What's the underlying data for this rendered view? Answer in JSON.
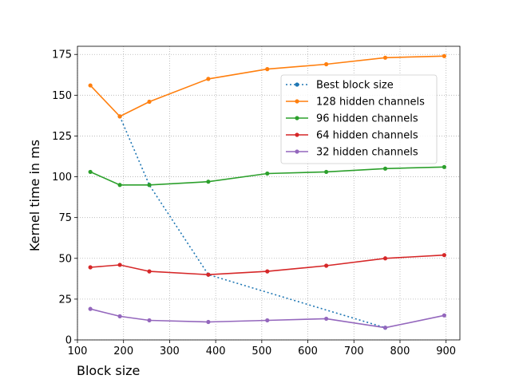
{
  "chart_data": {
    "type": "line",
    "xlabel": "Block size",
    "ylabel": "Kernel time in ms",
    "xlim": [
      100,
      930
    ],
    "ylim": [
      0,
      180
    ],
    "xticks": [
      100,
      200,
      300,
      400,
      500,
      600,
      700,
      800,
      900
    ],
    "yticks": [
      0,
      25,
      50,
      75,
      100,
      125,
      150,
      175
    ],
    "grid": true,
    "grid_style": "dotted",
    "legend_position": "upper right",
    "series": [
      {
        "name": "Best block size",
        "color": "#1f77b4",
        "linestyle": "dotted",
        "x": [
          192,
          256,
          384,
          768
        ],
        "y": [
          137,
          95,
          40,
          7.5
        ]
      },
      {
        "name": "128 hidden channels",
        "color": "#ff7f0e",
        "linestyle": "solid",
        "x": [
          128,
          192,
          256,
          384,
          512,
          640,
          768,
          896
        ],
        "y": [
          156,
          137,
          146,
          160,
          166,
          169,
          173,
          174
        ]
      },
      {
        "name": "96 hidden channels",
        "color": "#2ca02c",
        "linestyle": "solid",
        "x": [
          128,
          192,
          256,
          384,
          512,
          640,
          768,
          896
        ],
        "y": [
          103,
          95,
          95,
          97,
          102,
          103,
          105,
          106
        ]
      },
      {
        "name": "64 hidden channels",
        "color": "#d62728",
        "linestyle": "solid",
        "x": [
          128,
          192,
          256,
          384,
          512,
          640,
          768,
          896
        ],
        "y": [
          44.5,
          46,
          42,
          40,
          42,
          45.5,
          50,
          52
        ]
      },
      {
        "name": "32 hidden channels",
        "color": "#9467bd",
        "linestyle": "solid",
        "x": [
          128,
          192,
          256,
          384,
          512,
          640,
          768,
          896
        ],
        "y": [
          19,
          14.5,
          12,
          11,
          12,
          13,
          7.5,
          15
        ]
      }
    ]
  }
}
